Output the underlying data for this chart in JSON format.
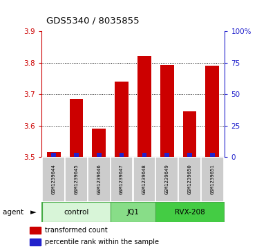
{
  "title": "GDS5340 / 8035855",
  "samples": [
    "GSM1239644",
    "GSM1239645",
    "GSM1239646",
    "GSM1239647",
    "GSM1239648",
    "GSM1239649",
    "GSM1239650",
    "GSM1239651"
  ],
  "red_values": [
    3.515,
    3.685,
    3.59,
    3.74,
    3.822,
    3.792,
    3.645,
    3.79
  ],
  "bar_bottom": 3.5,
  "ylim_left": [
    3.5,
    3.9
  ],
  "ylim_right": [
    0,
    100
  ],
  "yticks_left": [
    3.5,
    3.6,
    3.7,
    3.8,
    3.9
  ],
  "yticks_right": [
    0,
    25,
    50,
    75,
    100
  ],
  "ytick_labels_right": [
    "0",
    "25",
    "50",
    "75",
    "100%"
  ],
  "groups": [
    {
      "label": "control",
      "indices": [
        0,
        1,
        2
      ],
      "facecolor": "#d8f5d8"
    },
    {
      "label": "JQ1",
      "indices": [
        3,
        4
      ],
      "facecolor": "#88dd88"
    },
    {
      "label": "RVX-208",
      "indices": [
        5,
        6,
        7
      ],
      "facecolor": "#44cc44"
    }
  ],
  "legend_red": "transformed count",
  "legend_blue": "percentile rank within the sample",
  "agent_label": "agent",
  "red_color": "#cc0000",
  "blue_color": "#2222cc",
  "sample_box_color": "#cccccc",
  "group_edge_color": "#44aa44",
  "plot_bg": "#ffffff"
}
